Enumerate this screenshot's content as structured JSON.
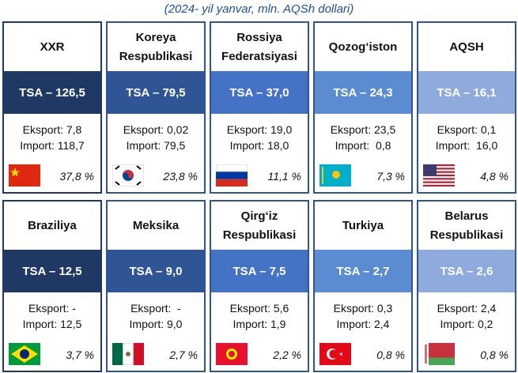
{
  "subtitle": "(2024- yil yanvar, mln. AQSh dollari)",
  "cards": [
    {
      "name": "XXR",
      "tsa": "TSA – 126,5",
      "export": "Eksport: 7,8",
      "import": "Import: 118,7",
      "share": "37,8 %"
    },
    {
      "name": "Koreya Respublikasi",
      "tsa": "TSA – 79,5",
      "export": "Eksport: 0,02",
      "import": "Import: 79,5",
      "share": "23,8 %"
    },
    {
      "name": "Rossiya Federatsiyasi",
      "tsa": "TSA – 37,0",
      "export": "Eksport: 19,0",
      "import": "Import: 18,0",
      "share": "11,1 %"
    },
    {
      "name": "Qozog‘iston",
      "tsa": "TSA – 24,3",
      "export": "Eksport: 23,5",
      "import": "Import:  0,8",
      "share": "7,3 %"
    },
    {
      "name": "AQSH",
      "tsa": "TSA – 16,1",
      "export": "Eksport: 0,1",
      "import": "Import:  16,0",
      "share": "4,8 %"
    },
    {
      "name": "Braziliya",
      "tsa": "TSA – 12,5",
      "export": "Eksport: -",
      "import": "Import: 12,5",
      "share": "3,7 %"
    },
    {
      "name": "Meksika",
      "tsa": "TSA – 9,0",
      "export": "Eksport:  -",
      "import": "Import: 9,0",
      "share": "2,7 %"
    },
    {
      "name": "Qirg‘iz Respublikasi",
      "tsa": "TSA – 7,5",
      "export": "Eksport: 5,6",
      "import": "Import: 1,9",
      "share": "2,2 %"
    },
    {
      "name": "Turkiya",
      "tsa": "TSA – 2,7",
      "export": "Eksport: 0,3",
      "import": "Import: 2,4",
      "share": "0,8 %"
    },
    {
      "name": "Belarus Respublikasi",
      "tsa": "TSA – 2,6",
      "export": "Eksport: 2,4",
      "import": "Import: 0,2",
      "share": "0,8 %"
    }
  ]
}
